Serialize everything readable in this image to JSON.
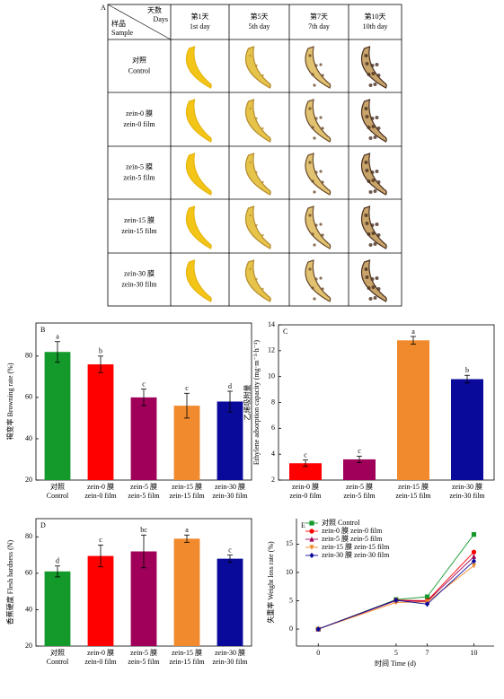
{
  "table": {
    "label": "A",
    "header": {
      "days": "天数",
      "days_en": "Days",
      "sample": "样品",
      "sample_en": "Sample"
    },
    "columns": [
      [
        "第1天",
        "1st day"
      ],
      [
        "第5天",
        "5th day"
      ],
      [
        "第7天",
        "7th day"
      ],
      [
        "第10天",
        "10th day"
      ]
    ],
    "rows": [
      [
        "对照",
        "Control"
      ],
      [
        "zein-0 膜",
        "zein-0 film"
      ],
      [
        "zein-5 膜",
        "zein-5 film"
      ],
      [
        "zein-15 膜",
        "zein-15 film"
      ],
      [
        "zein-30 膜",
        "zein-30 film"
      ]
    ]
  },
  "chart_data": [
    {
      "type": "bar",
      "panel": "B",
      "ylabel": [
        "褐变率 Browning rate (%)"
      ],
      "categories": [
        [
          "对照",
          "Control"
        ],
        [
          "zein-0 膜",
          "zein-0 film"
        ],
        [
          "zein-5 膜",
          "zein-5 film"
        ],
        [
          "zein-15 膜",
          "zein-15 film"
        ],
        [
          "zein-30 膜",
          "zein-30 film"
        ]
      ],
      "values": [
        82,
        76,
        60,
        56,
        58
      ],
      "errors": [
        5,
        4,
        4,
        6,
        5
      ],
      "annotations": [
        "a",
        "b",
        "c",
        "c",
        "d"
      ],
      "colors": [
        "#139a2b",
        "#ff0000",
        "#a0005a",
        "#f08a2c",
        "#0a0a9a"
      ],
      "ylim": [
        20,
        96
      ],
      "yticks": [
        20,
        40,
        60,
        80
      ]
    },
    {
      "type": "bar",
      "panel": "C",
      "ylabel": [
        "乙烯吸附量",
        "Ethylene adsorption capacity (mg·m⁻³·h⁻¹)"
      ],
      "categories": [
        [
          "zein-0 膜",
          "zein-0 film"
        ],
        [
          "zein-5 膜",
          "zein-5 film"
        ],
        [
          "zein-15 膜",
          "zein-15 film"
        ],
        [
          "zein-30 膜",
          "zein-30 film"
        ]
      ],
      "values": [
        3.3,
        3.6,
        12.8,
        9.8
      ],
      "errors": [
        0.25,
        0.25,
        0.3,
        0.3
      ],
      "annotations": [
        "c",
        "c",
        "a",
        "b"
      ],
      "colors": [
        "#ff0000",
        "#a0005a",
        "#f08a2c",
        "#0a0a9a"
      ],
      "ylim": [
        2,
        14
      ],
      "yticks": [
        2,
        4,
        6,
        8,
        10,
        12,
        14
      ]
    },
    {
      "type": "bar",
      "panel": "D",
      "ylabel": [
        "香蕉硬度 Flesh hardness (N)"
      ],
      "categories": [
        [
          "对照",
          "Control"
        ],
        [
          "zein-0 膜",
          "zein-0 film"
        ],
        [
          "zein-5 膜",
          "zein-5 film"
        ],
        [
          "zein-15 膜",
          "zein-15 film"
        ],
        [
          "zein-30 膜",
          "zein-30 film"
        ]
      ],
      "values": [
        61,
        69.5,
        72,
        79,
        68
      ],
      "errors": [
        3,
        6,
        9,
        2,
        2
      ],
      "annotations": [
        "d",
        "c",
        "bc",
        "a",
        "c"
      ],
      "colors": [
        "#139a2b",
        "#ff0000",
        "#a0005a",
        "#f08a2c",
        "#0a0a9a"
      ],
      "ylim": [
        20,
        90
      ],
      "yticks": [
        20,
        40,
        60,
        80
      ]
    },
    {
      "type": "line",
      "panel": "E",
      "xlabel": "时间 Time (d)",
      "ylabel": [
        "失重率 Weight loss rate (%)"
      ],
      "x": [
        0,
        5,
        7,
        10
      ],
      "xlim": [
        -1.4,
        11.3
      ],
      "xticks": [
        0,
        5,
        7,
        10
      ],
      "ylim": [
        -3,
        19.5
      ],
      "yticks": [
        0,
        5,
        10,
        15
      ],
      "series": [
        {
          "name": "对照 Control",
          "color": "#139a2b",
          "marker": "square",
          "values": [
            0,
            5.2,
            5.7,
            16.7
          ]
        },
        {
          "name": "zein-0 膜 zein-0 film",
          "color": "#ff0000",
          "marker": "circle",
          "values": [
            0,
            5.1,
            5.0,
            13.6
          ]
        },
        {
          "name": "zein-5 膜 zein-5 film",
          "color": "#a0005a",
          "marker": "triangle-up",
          "values": [
            0,
            5.0,
            4.9,
            12.8
          ]
        },
        {
          "name": "zein-15 膜 zein-15 film",
          "color": "#f08a2c",
          "marker": "triangle-down",
          "values": [
            0,
            4.7,
            4.8,
            11.2
          ]
        },
        {
          "name": "zein-30 膜 zein-30 film",
          "color": "#0a0a9a",
          "marker": "diamond",
          "values": [
            0,
            5.1,
            4.4,
            12.0
          ]
        }
      ]
    }
  ]
}
